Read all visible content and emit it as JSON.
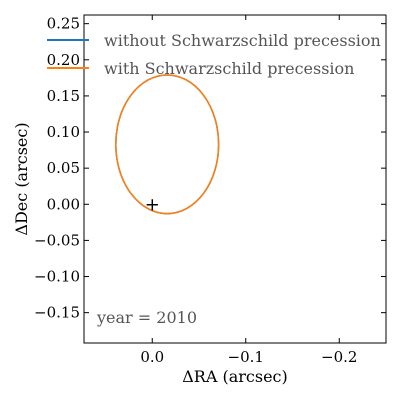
{
  "chart_data": {
    "type": "line",
    "xlabel": "ΔRA (arcsec)",
    "ylabel": "ΔDec (arcsec)",
    "xlim": [
      0.073,
      -0.25
    ],
    "ylim": [
      -0.192,
      0.262
    ],
    "x_inverted": true,
    "xticks": [
      0.0,
      -0.1,
      -0.2
    ],
    "xtick_labels": [
      "0.0",
      "−0.1",
      "−0.2"
    ],
    "yticks": [
      -0.15,
      -0.1,
      -0.05,
      0.0,
      0.05,
      0.1,
      0.15,
      0.2,
      0.25
    ],
    "ytick_labels": [
      "−0.15",
      "−0.10",
      "−0.05",
      "0.00",
      "0.05",
      "0.10",
      "0.15",
      "0.20",
      "0.25"
    ],
    "legend_placement": "upper-left",
    "grid": false,
    "series": [
      {
        "name": "without Schwarzschild precession",
        "color": "#1f77b4",
        "shape": "ellipse",
        "center": [
          -0.016,
          0.083
        ],
        "semi_axes": [
          0.055,
          0.096
        ]
      },
      {
        "name": "with Schwarzschild precession",
        "color": "#ff7f0e",
        "shape": "ellipse",
        "center": [
          -0.016,
          0.083
        ],
        "semi_axes": [
          0.055,
          0.096
        ]
      }
    ],
    "markers": [
      {
        "label": "+",
        "x": 0.0,
        "y": 0.0,
        "color": "#000000"
      }
    ],
    "annotation": "year = 2010"
  }
}
